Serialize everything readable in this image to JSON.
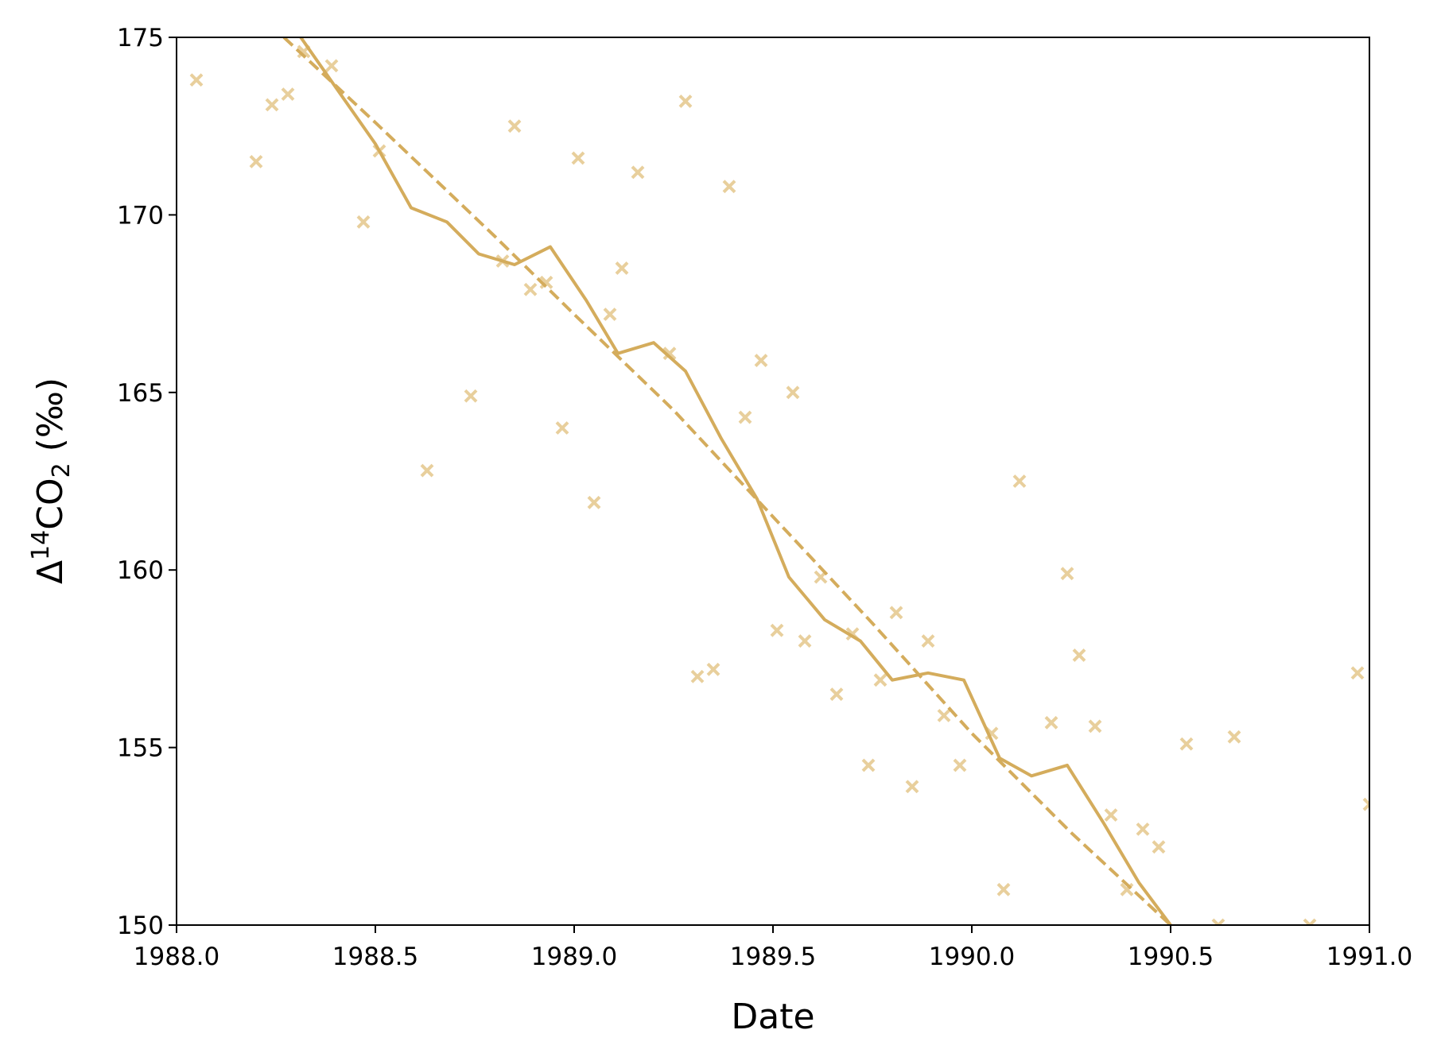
{
  "chart_data": {
    "type": "scatter",
    "xlabel": "Date",
    "ylabel": {
      "prefix": "Δ",
      "sup": "14",
      "base": "CO",
      "sub": "2",
      "suffix": " (‰)"
    },
    "xlim": [
      1988.0,
      1991.0
    ],
    "ylim": [
      150,
      175
    ],
    "xticks": [
      "1988.0",
      "1988.5",
      "1989.0",
      "1989.5",
      "1990.0",
      "1990.5",
      "1991.0"
    ],
    "yticks": [
      "150",
      "155",
      "160",
      "165",
      "170",
      "175"
    ],
    "grid": false,
    "legend": "none",
    "color": "#d4ac5c",
    "marker_color": "#e8cf9c",
    "series": [
      {
        "kind": "markers",
        "marker": "x",
        "points": [
          [
            1988.05,
            173.8
          ],
          [
            1988.2,
            171.5
          ],
          [
            1988.24,
            173.1
          ],
          [
            1988.28,
            173.4
          ],
          [
            1988.32,
            174.6
          ],
          [
            1988.39,
            174.2
          ],
          [
            1988.47,
            169.8
          ],
          [
            1988.51,
            171.8
          ],
          [
            1988.63,
            162.8
          ],
          [
            1988.74,
            164.9
          ],
          [
            1988.82,
            168.7
          ],
          [
            1988.85,
            172.5
          ],
          [
            1988.89,
            167.9
          ],
          [
            1988.93,
            168.1
          ],
          [
            1988.97,
            164.0
          ],
          [
            1989.01,
            171.6
          ],
          [
            1989.05,
            161.9
          ],
          [
            1989.09,
            167.2
          ],
          [
            1989.12,
            168.5
          ],
          [
            1989.16,
            171.2
          ],
          [
            1989.24,
            166.1
          ],
          [
            1989.28,
            173.2
          ],
          [
            1989.31,
            157.0
          ],
          [
            1989.35,
            157.2
          ],
          [
            1989.39,
            170.8
          ],
          [
            1989.43,
            164.3
          ],
          [
            1989.47,
            165.9
          ],
          [
            1989.51,
            158.3
          ],
          [
            1989.55,
            165.0
          ],
          [
            1989.58,
            158.0
          ],
          [
            1989.62,
            159.8
          ],
          [
            1989.66,
            156.5
          ],
          [
            1989.7,
            158.2
          ],
          [
            1989.74,
            154.5
          ],
          [
            1989.77,
            156.9
          ],
          [
            1989.81,
            158.8
          ],
          [
            1989.85,
            153.9
          ],
          [
            1989.89,
            158.0
          ],
          [
            1989.93,
            155.9
          ],
          [
            1989.97,
            154.5
          ],
          [
            1990.05,
            155.4
          ],
          [
            1990.08,
            151.0
          ],
          [
            1990.12,
            162.5
          ],
          [
            1990.2,
            155.7
          ],
          [
            1990.24,
            159.9
          ],
          [
            1990.27,
            157.6
          ],
          [
            1990.31,
            155.6
          ],
          [
            1990.35,
            153.1
          ],
          [
            1990.39,
            151.0
          ],
          [
            1990.43,
            152.7
          ],
          [
            1990.47,
            152.2
          ],
          [
            1990.54,
            155.1
          ],
          [
            1990.62,
            150.0
          ],
          [
            1990.66,
            155.3
          ],
          [
            1990.85,
            150.0
          ],
          [
            1990.97,
            157.1
          ],
          [
            1991.0,
            153.4
          ]
        ]
      },
      {
        "kind": "line",
        "style": "solid",
        "points": [
          [
            1988.3,
            175.2
          ],
          [
            1988.4,
            173.6
          ],
          [
            1988.5,
            172.0
          ],
          [
            1988.59,
            170.2
          ],
          [
            1988.68,
            169.8
          ],
          [
            1988.76,
            168.9
          ],
          [
            1988.85,
            168.6
          ],
          [
            1988.94,
            169.1
          ],
          [
            1989.03,
            167.6
          ],
          [
            1989.11,
            166.1
          ],
          [
            1989.2,
            166.4
          ],
          [
            1989.28,
            165.6
          ],
          [
            1989.37,
            163.7
          ],
          [
            1989.46,
            162.0
          ],
          [
            1989.54,
            159.8
          ],
          [
            1989.63,
            158.6
          ],
          [
            1989.72,
            158.0
          ],
          [
            1989.8,
            156.9
          ],
          [
            1989.89,
            157.1
          ],
          [
            1989.98,
            156.9
          ],
          [
            1990.07,
            154.7
          ],
          [
            1990.15,
            154.2
          ],
          [
            1990.24,
            154.5
          ],
          [
            1990.33,
            152.9
          ],
          [
            1990.42,
            151.2
          ],
          [
            1990.5,
            150.0
          ]
        ]
      },
      {
        "kind": "line",
        "style": "dashed",
        "points": [
          [
            1988.27,
            175.0
          ],
          [
            1988.5,
            172.6
          ],
          [
            1988.8,
            169.4
          ],
          [
            1989.0,
            167.2
          ],
          [
            1989.25,
            164.5
          ],
          [
            1989.5,
            161.5
          ],
          [
            1989.75,
            158.5
          ],
          [
            1990.0,
            155.4
          ],
          [
            1990.25,
            152.6
          ],
          [
            1990.5,
            150.0
          ]
        ]
      }
    ]
  }
}
